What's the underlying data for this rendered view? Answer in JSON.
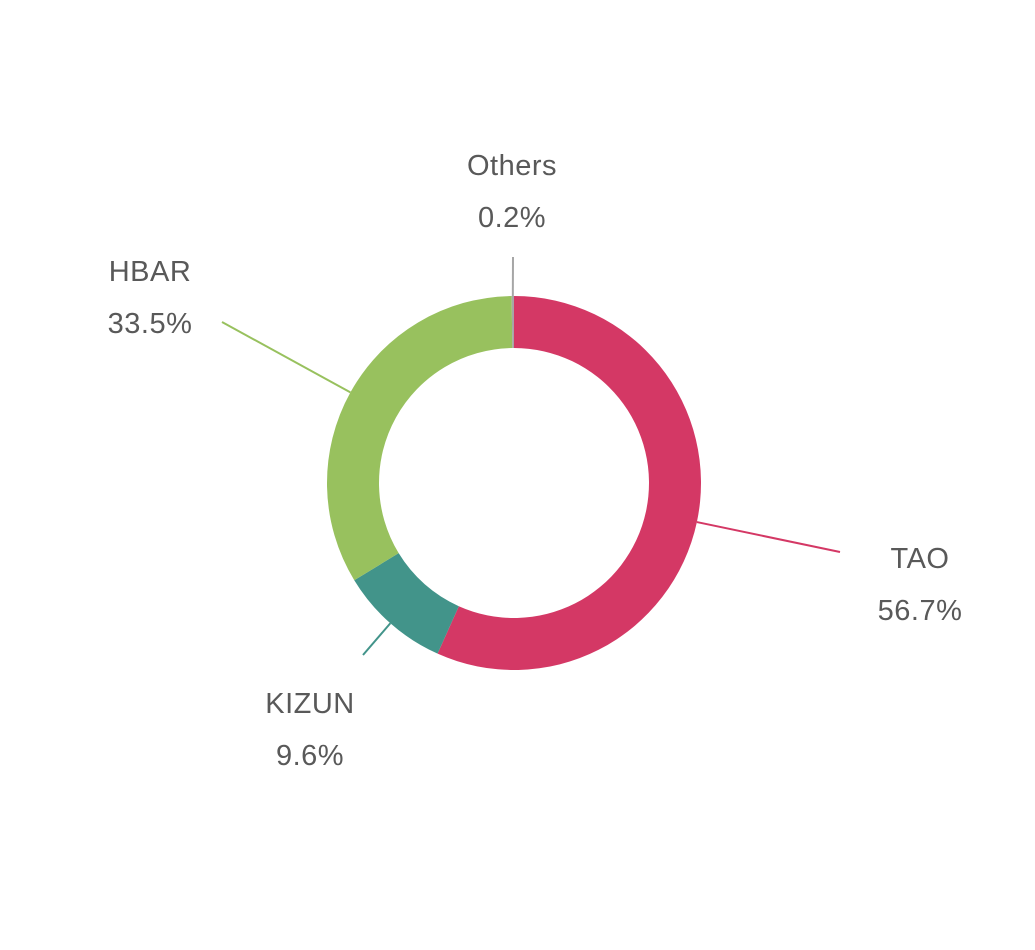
{
  "chart_data": {
    "type": "pie",
    "variant": "donut",
    "categories": [
      "TAO",
      "KIZUN",
      "HBAR",
      "Others"
    ],
    "values": [
      56.7,
      9.6,
      33.5,
      0.2
    ],
    "value_labels": [
      "56.7%",
      "9.6%",
      "33.5%",
      "0.2%"
    ],
    "colors": [
      "#d43865",
      "#42948a",
      "#98c15e",
      "#a6a6a6"
    ],
    "start_angle": "12 o'clock",
    "direction": "clockwise",
    "labels_outside": true,
    "legend": "none"
  }
}
